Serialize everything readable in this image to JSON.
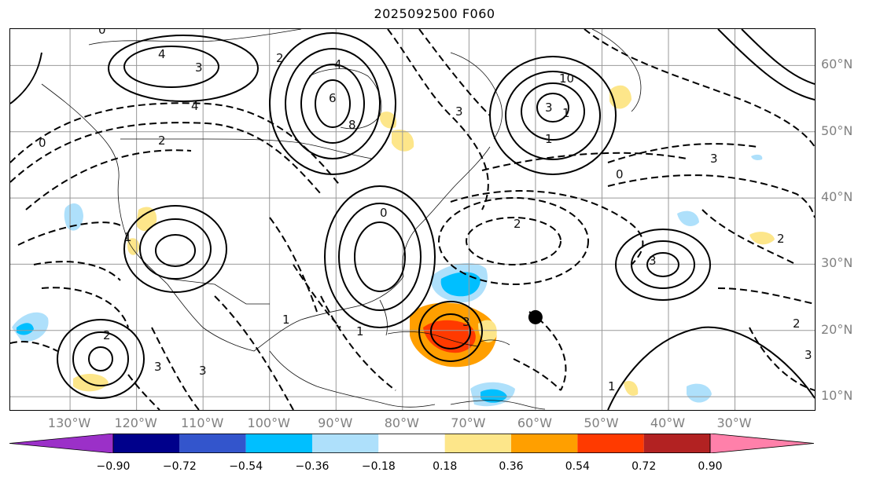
{
  "title": "2025092500 F060",
  "map": {
    "lat_labels": [
      "60°N",
      "50°N",
      "40°N",
      "30°N",
      "20°N",
      "10°N"
    ],
    "lon_labels": [
      "130°W",
      "120°W",
      "110°W",
      "100°W",
      "90°W",
      "80°W",
      "70°W",
      "60°W",
      "50°W",
      "40°W",
      "30°W"
    ],
    "lat_range": [
      8,
      65.5
    ],
    "lon_range": [
      -139,
      -18
    ],
    "grid_lats": [
      60,
      50,
      40,
      30,
      20,
      10
    ],
    "grid_lons": [
      -130,
      -120,
      -110,
      -100,
      -90,
      -80,
      -70,
      -60,
      -50,
      -40,
      -30
    ],
    "contour_labels": [
      "0",
      "4",
      "3",
      "2",
      "4",
      "6",
      "8",
      "10",
      "3",
      "1",
      "3",
      "4",
      "2",
      "0",
      "1",
      "2",
      "3",
      "3",
      "1",
      "0",
      "1",
      "2",
      "3",
      "3",
      "3",
      "2",
      "0",
      "1",
      "1",
      "2",
      "3"
    ],
    "marker": {
      "lat": 22,
      "lon": -60,
      "name": "storm-center-marker"
    }
  },
  "colorbar": {
    "ticks": [
      "−0.90",
      "−0.72",
      "−0.54",
      "−0.36",
      "−0.18",
      "0.18",
      "0.36",
      "0.54",
      "0.72",
      "0.90"
    ],
    "colors": {
      "under": "#9b30c8",
      "bins": [
        "#00008b",
        "#3355cc",
        "#00bfff",
        "#aee0fb",
        "#ffffff",
        "#fde68a",
        "#ff9f00",
        "#ff3a00",
        "#b22222"
      ],
      "over": "#ff80aa"
    }
  }
}
